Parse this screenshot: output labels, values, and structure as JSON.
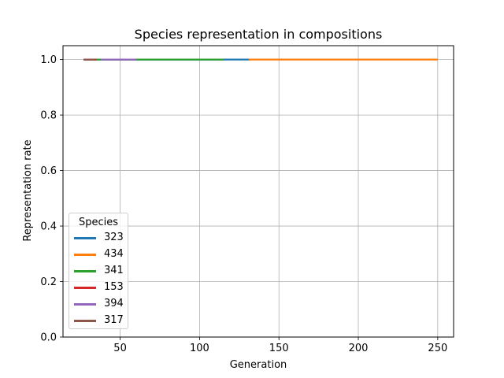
{
  "chart_data": {
    "type": "line",
    "title": "Species representation in compositions",
    "xlabel": "Generation",
    "ylabel": "Representation rate",
    "xlim": [
      14,
      260
    ],
    "ylim": [
      0,
      1.05
    ],
    "xticks": [
      50,
      100,
      150,
      200,
      250
    ],
    "yticks": [
      0.0,
      0.2,
      0.4,
      0.6,
      0.8,
      1.0
    ],
    "grid": true,
    "legend_title": "Species",
    "legend_position": "lower-left",
    "series": [
      {
        "name": "323",
        "color": "#1f77b4",
        "x": [
          27,
          132
        ],
        "y": [
          1.0,
          1.0
        ]
      },
      {
        "name": "434",
        "color": "#ff7f0e",
        "x": [
          131,
          250
        ],
        "y": [
          1.0,
          1.0
        ]
      },
      {
        "name": "341",
        "color": "#2ca02c",
        "x": [
          34,
          115
        ],
        "y": [
          1.0,
          1.0
        ]
      },
      {
        "name": "153",
        "color": "#d62728",
        "x": [
          27,
          35
        ],
        "y": [
          1.0,
          1.0
        ]
      },
      {
        "name": "394",
        "color": "#9467bd",
        "x": [
          38,
          60
        ],
        "y": [
          1.0,
          1.0
        ]
      },
      {
        "name": "317",
        "color": "#8c564b",
        "x": [
          27,
          34
        ],
        "y": [
          1.0,
          1.0
        ]
      }
    ]
  }
}
